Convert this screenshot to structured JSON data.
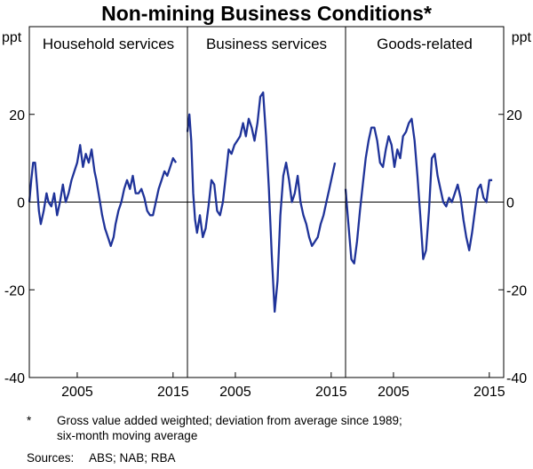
{
  "title": "Non-mining Business Conditions*",
  "footnote": {
    "marker": "*",
    "line1": "Gross value added weighted; deviation from average since 1989;",
    "line2": "six-month moving average"
  },
  "sources": {
    "label": "Sources:",
    "text": "ABS; NAB; RBA"
  },
  "chart_data": {
    "type": "line",
    "title": "Non-mining Business Conditions*",
    "unit_left": "ppt",
    "unit_right": "ppt",
    "ylim": [
      -40,
      40
    ],
    "yticks": [
      20,
      0,
      -20,
      -40
    ],
    "xlim": [
      2000,
      2016.5
    ],
    "xticks": [
      2005,
      2015
    ],
    "grid": false,
    "series_color": "#1f3399",
    "panels": [
      {
        "name": "Household services",
        "x": [
          2000.0,
          2000.2,
          2000.4,
          2000.6,
          2000.8,
          2001.0,
          2001.2,
          2001.5,
          2001.8,
          2002.0,
          2002.3,
          2002.6,
          2002.9,
          2003.2,
          2003.5,
          2003.8,
          2004.1,
          2004.4,
          2004.7,
          2005.0,
          2005.3,
          2005.6,
          2005.9,
          2006.2,
          2006.5,
          2006.8,
          2007.0,
          2007.3,
          2007.6,
          2007.9,
          2008.2,
          2008.5,
          2008.8,
          2009.0,
          2009.3,
          2009.6,
          2009.9,
          2010.2,
          2010.5,
          2010.8,
          2011.1,
          2011.4,
          2011.7,
          2012.0,
          2012.3,
          2012.6,
          2012.9,
          2013.2,
          2013.5,
          2013.8,
          2014.1,
          2014.4,
          2014.7,
          2015.0,
          2015.3
        ],
        "values": [
          0,
          5,
          9,
          9,
          4,
          -2,
          -5,
          -2,
          2,
          0,
          -1,
          2,
          -3,
          0,
          4,
          0,
          2,
          5,
          7,
          9,
          13,
          8,
          11,
          9,
          12,
          7,
          5,
          1,
          -3,
          -6,
          -8,
          -10,
          -8,
          -5,
          -2,
          0,
          3,
          5,
          3,
          6,
          2,
          2,
          3,
          1,
          -2,
          -3,
          -3,
          0,
          3,
          5,
          7,
          6,
          8,
          10,
          9
        ]
      },
      {
        "name": "Business services",
        "x": [
          2000.0,
          2000.2,
          2000.4,
          2000.6,
          2000.8,
          2001.0,
          2001.3,
          2001.6,
          2001.9,
          2002.2,
          2002.5,
          2002.8,
          2003.1,
          2003.4,
          2003.7,
          2004.0,
          2004.3,
          2004.6,
          2004.9,
          2005.2,
          2005.5,
          2005.8,
          2006.1,
          2006.4,
          2006.7,
          2007.0,
          2007.3,
          2007.6,
          2007.9,
          2008.2,
          2008.5,
          2008.8,
          2009.1,
          2009.4,
          2009.7,
          2010.0,
          2010.3,
          2010.6,
          2010.9,
          2011.2,
          2011.5,
          2011.8,
          2012.1,
          2012.4,
          2012.7,
          2013.0,
          2013.3,
          2013.6,
          2013.9,
          2014.2,
          2014.5,
          2014.8,
          2015.1,
          2015.4
        ],
        "values": [
          16,
          20,
          14,
          2,
          -4,
          -7,
          -3,
          -8,
          -6,
          -1,
          5,
          4,
          -2,
          -3,
          0,
          6,
          12,
          11,
          13,
          14,
          15,
          18,
          15,
          19,
          17,
          14,
          18,
          24,
          25,
          15,
          3,
          -12,
          -25,
          -18,
          -3,
          6,
          9,
          5,
          0,
          2,
          6,
          0,
          -3,
          -5,
          -8,
          -10,
          -9,
          -8,
          -5,
          -3,
          0,
          3,
          6,
          9
        ]
      },
      {
        "name": "Goods-related",
        "x": [
          2000.0,
          2000.3,
          2000.6,
          2000.9,
          2001.2,
          2001.5,
          2001.8,
          2002.1,
          2002.4,
          2002.7,
          2003.0,
          2003.3,
          2003.6,
          2003.9,
          2004.2,
          2004.5,
          2004.8,
          2005.1,
          2005.4,
          2005.7,
          2006.0,
          2006.3,
          2006.6,
          2006.9,
          2007.2,
          2007.5,
          2007.8,
          2008.1,
          2008.4,
          2008.7,
          2009.0,
          2009.3,
          2009.6,
          2009.9,
          2010.2,
          2010.5,
          2010.8,
          2011.1,
          2011.4,
          2011.7,
          2012.0,
          2012.3,
          2012.6,
          2012.9,
          2013.2,
          2013.5,
          2013.8,
          2014.1,
          2014.4,
          2014.7,
          2015.0,
          2015.3
        ],
        "values": [
          3,
          -5,
          -13,
          -14,
          -9,
          -2,
          4,
          10,
          14,
          17,
          17,
          14,
          9,
          8,
          12,
          15,
          13,
          8,
          12,
          10,
          15,
          16,
          18,
          19,
          14,
          6,
          -3,
          -13,
          -11,
          -2,
          10,
          11,
          6,
          3,
          0,
          -1,
          1,
          0,
          2,
          4,
          1,
          -4,
          -8,
          -11,
          -7,
          -2,
          3,
          4,
          1,
          0,
          5,
          5
        ]
      }
    ]
  }
}
